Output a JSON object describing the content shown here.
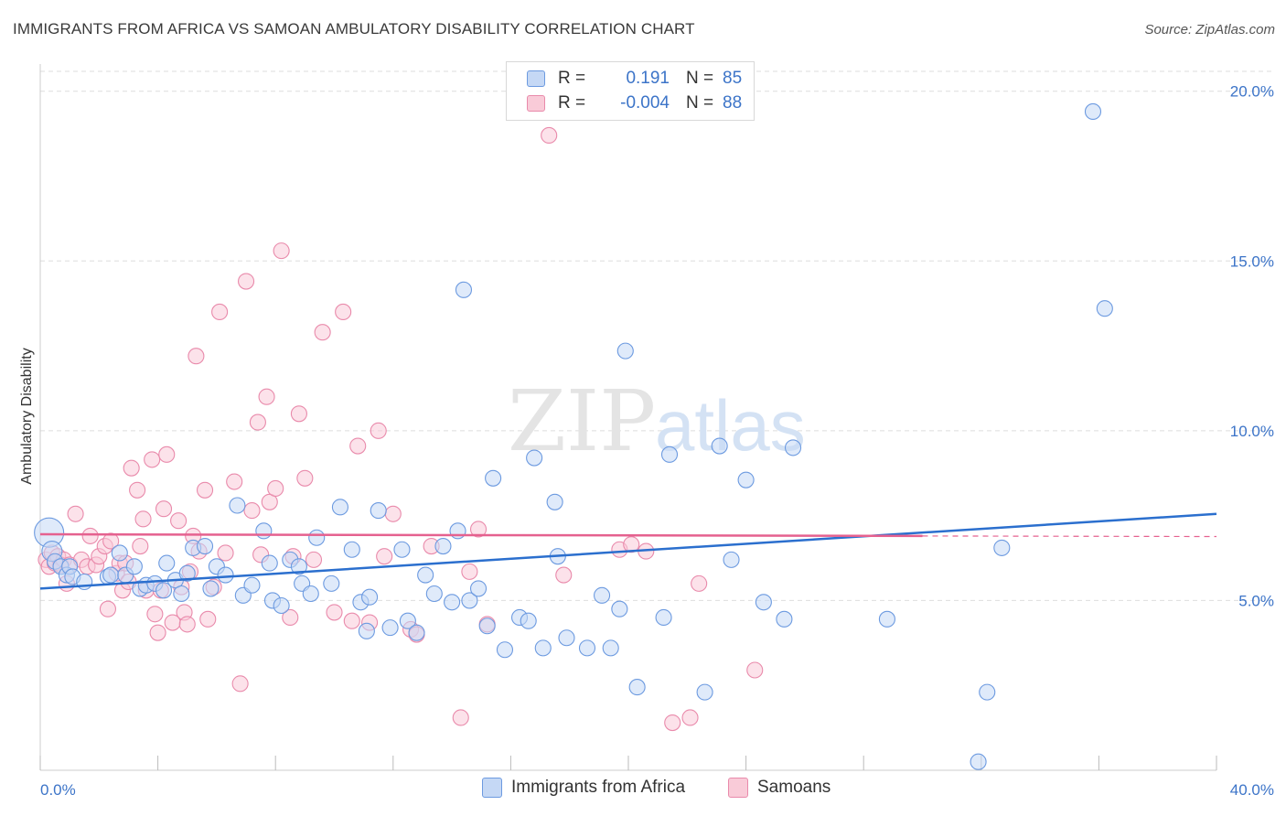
{
  "title": "IMMIGRANTS FROM AFRICA VS SAMOAN AMBULATORY DISABILITY CORRELATION CHART",
  "source": "Source: ZipAtlas.com",
  "watermark": {
    "zip": "ZIP",
    "atlas": "atlas"
  },
  "legend": {
    "rows": [
      {
        "r_label": "R =",
        "r_value": "0.191",
        "n_label": "N =",
        "n_value": "85"
      },
      {
        "r_label": "R =",
        "r_value": "-0.004",
        "n_label": "N =",
        "n_value": "88"
      }
    ]
  },
  "bottom_legend": [
    "Immigrants from Africa",
    "Samoans"
  ],
  "colors": {
    "blue_fill": "#c5d8f5",
    "blue_stroke": "#6c9ae0",
    "blue_line": "#2b6fce",
    "pink_fill": "#f9cbd8",
    "pink_stroke": "#e98aab",
    "pink_line": "#e5618f",
    "tick_text": "#3c74c8",
    "grid": "#dedede"
  },
  "chart_data": {
    "type": "scatter",
    "title": "IMMIGRANTS FROM AFRICA VS SAMOAN AMBULATORY DISABILITY CORRELATION CHART",
    "xlabel": "",
    "ylabel": "Ambulatory Disability",
    "xlim": [
      0,
      40
    ],
    "ylim": [
      0,
      20.8
    ],
    "x_tick_labels": [
      "0.0%",
      "40.0%"
    ],
    "y_ticks": [
      5,
      10,
      15,
      20
    ],
    "y_tick_labels": [
      "5.0%",
      "10.0%",
      "15.0%",
      "20.0%"
    ],
    "grid": true,
    "legend_position": "top-center",
    "series": [
      {
        "name": "Immigrants from Africa",
        "r": 0.191,
        "n": 85,
        "trend": {
          "x": [
            0,
            40
          ],
          "y": [
            5.35,
            7.55
          ]
        },
        "points": [
          [
            0.3,
            7.0,
            "l"
          ],
          [
            0.4,
            6.45,
            "m"
          ],
          [
            0.5,
            6.15
          ],
          [
            0.7,
            6.0
          ],
          [
            0.9,
            5.75
          ],
          [
            1.0,
            6.0
          ],
          [
            1.1,
            5.7
          ],
          [
            1.5,
            5.55
          ],
          [
            2.3,
            5.7
          ],
          [
            2.4,
            5.75
          ],
          [
            2.7,
            6.4
          ],
          [
            2.9,
            5.75
          ],
          [
            3.2,
            6.0
          ],
          [
            3.4,
            5.35
          ],
          [
            3.6,
            5.45
          ],
          [
            3.9,
            5.5
          ],
          [
            4.2,
            5.3
          ],
          [
            4.3,
            6.1
          ],
          [
            4.6,
            5.6
          ],
          [
            4.8,
            5.2
          ],
          [
            5.0,
            5.8
          ],
          [
            5.2,
            6.55
          ],
          [
            5.6,
            6.6
          ],
          [
            5.8,
            5.35
          ],
          [
            6.0,
            6.0
          ],
          [
            6.3,
            5.75
          ],
          [
            6.7,
            7.8
          ],
          [
            6.9,
            5.15
          ],
          [
            7.2,
            5.45
          ],
          [
            7.6,
            7.05
          ],
          [
            7.8,
            6.1
          ],
          [
            7.9,
            5.0
          ],
          [
            8.2,
            4.85
          ],
          [
            8.5,
            6.2
          ],
          [
            8.8,
            6.0
          ],
          [
            8.9,
            5.5
          ],
          [
            9.2,
            5.2
          ],
          [
            9.4,
            6.85
          ],
          [
            9.9,
            5.5
          ],
          [
            10.2,
            7.75
          ],
          [
            10.6,
            6.5
          ],
          [
            10.9,
            4.95
          ],
          [
            11.1,
            4.1
          ],
          [
            11.2,
            5.1
          ],
          [
            11.5,
            7.65
          ],
          [
            11.9,
            4.2
          ],
          [
            12.3,
            6.5
          ],
          [
            12.5,
            4.4
          ],
          [
            12.8,
            4.05
          ],
          [
            13.1,
            5.75
          ],
          [
            13.4,
            5.2
          ],
          [
            13.7,
            6.6
          ],
          [
            14.0,
            4.95
          ],
          [
            14.2,
            7.05
          ],
          [
            14.6,
            5.0
          ],
          [
            14.9,
            5.35
          ],
          [
            15.2,
            4.25
          ],
          [
            15.4,
            8.6
          ],
          [
            15.8,
            3.55
          ],
          [
            16.3,
            4.5
          ],
          [
            16.6,
            4.4
          ],
          [
            16.8,
            9.2
          ],
          [
            17.1,
            3.6
          ],
          [
            17.5,
            7.9
          ],
          [
            17.6,
            6.3
          ],
          [
            17.9,
            3.9
          ],
          [
            18.6,
            3.6
          ],
          [
            19.1,
            5.15
          ],
          [
            19.4,
            3.6
          ],
          [
            19.7,
            4.75
          ],
          [
            19.9,
            12.35
          ],
          [
            20.3,
            2.45
          ],
          [
            21.4,
            9.3
          ],
          [
            22.6,
            2.3
          ],
          [
            23.1,
            9.55
          ],
          [
            23.5,
            6.2
          ],
          [
            24.0,
            8.55
          ],
          [
            25.3,
            4.45
          ],
          [
            25.6,
            9.5
          ],
          [
            28.8,
            4.45
          ],
          [
            32.2,
            2.3
          ],
          [
            32.7,
            6.55
          ],
          [
            35.8,
            19.4
          ],
          [
            36.2,
            13.6
          ],
          [
            14.4,
            14.15
          ],
          [
            31.9,
            0.25
          ],
          [
            21.2,
            4.5
          ],
          [
            24.6,
            4.95
          ]
        ]
      },
      {
        "name": "Samoans",
        "r": -0.004,
        "n": 88,
        "trend": {
          "x": [
            0,
            30
          ],
          "y": [
            6.95,
            6.9
          ]
        },
        "points": [
          [
            0.2,
            6.2
          ],
          [
            0.3,
            6.0
          ],
          [
            0.4,
            6.4
          ],
          [
            0.5,
            6.1
          ],
          [
            0.6,
            6.3
          ],
          [
            0.7,
            6.05
          ],
          [
            0.8,
            6.2
          ],
          [
            0.9,
            5.5
          ],
          [
            1.0,
            6.05
          ],
          [
            1.2,
            7.55
          ],
          [
            1.4,
            6.2
          ],
          [
            1.6,
            6.0
          ],
          [
            1.7,
            6.9
          ],
          [
            1.9,
            6.05
          ],
          [
            2.0,
            6.3
          ],
          [
            2.2,
            6.6
          ],
          [
            2.3,
            4.75
          ],
          [
            2.4,
            6.75
          ],
          [
            2.6,
            5.8
          ],
          [
            2.7,
            6.1
          ],
          [
            2.8,
            5.3
          ],
          [
            2.9,
            6.1
          ],
          [
            3.0,
            5.55
          ],
          [
            3.1,
            8.9
          ],
          [
            3.3,
            8.25
          ],
          [
            3.4,
            6.6
          ],
          [
            3.5,
            7.4
          ],
          [
            3.6,
            5.3
          ],
          [
            3.8,
            9.15
          ],
          [
            3.9,
            4.6
          ],
          [
            4.0,
            4.05
          ],
          [
            4.1,
            5.3
          ],
          [
            4.2,
            7.7
          ],
          [
            4.3,
            9.3
          ],
          [
            4.5,
            4.35
          ],
          [
            4.7,
            7.35
          ],
          [
            4.8,
            5.4
          ],
          [
            4.9,
            4.65
          ],
          [
            5.0,
            4.3
          ],
          [
            5.1,
            5.85
          ],
          [
            5.2,
            6.9
          ],
          [
            5.3,
            12.2
          ],
          [
            5.4,
            6.45
          ],
          [
            5.6,
            8.25
          ],
          [
            5.7,
            4.45
          ],
          [
            5.9,
            5.4
          ],
          [
            6.1,
            13.5
          ],
          [
            6.3,
            6.4
          ],
          [
            6.6,
            8.5
          ],
          [
            6.8,
            2.55
          ],
          [
            7.0,
            14.4
          ],
          [
            7.2,
            7.65
          ],
          [
            7.4,
            10.25
          ],
          [
            7.5,
            6.35
          ],
          [
            7.7,
            11.0
          ],
          [
            7.8,
            7.9
          ],
          [
            8.0,
            8.3
          ],
          [
            8.2,
            15.3
          ],
          [
            8.5,
            4.5
          ],
          [
            8.8,
            10.5
          ],
          [
            9.0,
            8.6
          ],
          [
            9.3,
            6.2
          ],
          [
            9.6,
            12.9
          ],
          [
            10.0,
            4.65
          ],
          [
            10.3,
            13.5
          ],
          [
            10.6,
            4.4
          ],
          [
            10.8,
            9.55
          ],
          [
            11.2,
            4.35
          ],
          [
            11.5,
            10.0
          ],
          [
            11.7,
            6.3
          ],
          [
            12.0,
            7.55
          ],
          [
            12.6,
            4.15
          ],
          [
            12.8,
            4.0
          ],
          [
            13.3,
            6.6
          ],
          [
            14.3,
            1.55
          ],
          [
            14.6,
            5.85
          ],
          [
            14.9,
            7.1
          ],
          [
            17.3,
            18.7
          ],
          [
            17.8,
            5.75
          ],
          [
            19.7,
            6.5
          ],
          [
            20.1,
            6.65
          ],
          [
            20.6,
            6.45
          ],
          [
            21.5,
            1.4
          ],
          [
            22.1,
            1.55
          ],
          [
            22.4,
            5.5
          ],
          [
            24.3,
            2.95
          ],
          [
            15.2,
            4.3
          ],
          [
            8.6,
            6.3
          ]
        ]
      }
    ]
  }
}
